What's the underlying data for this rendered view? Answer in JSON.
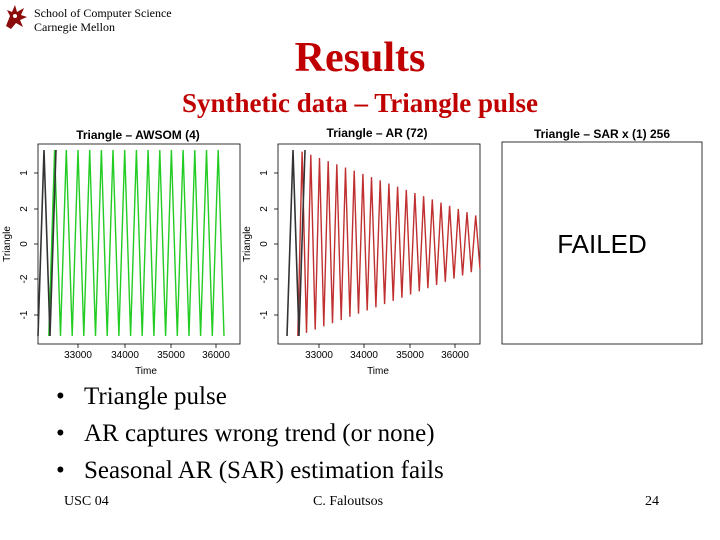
{
  "header": {
    "org_line1": "School of Computer Science",
    "org_line2": "Carnegie Mellon",
    "logo_icon": "griffin-logo-icon"
  },
  "slide": {
    "title": "Results",
    "subtitle": "Synthetic data – Triangle pulse",
    "title_color": "#c00000"
  },
  "chart_data": [
    {
      "type": "line",
      "title": "Triangle – AWSOM (4)",
      "xlabel": "Time",
      "ylabel": "Triangle",
      "x_ticks": [
        "33000",
        "34000",
        "35000",
        "36000"
      ],
      "y_ticks": [
        "-1",
        "-2",
        "0",
        "2",
        "1"
      ],
      "series": [
        {
          "color": "#333333",
          "cycles": 1.5,
          "amplitude": 1,
          "decay": 0
        },
        {
          "color": "#22cc22",
          "cycles": 15,
          "amplitude": 1,
          "decay": 0
        }
      ]
    },
    {
      "type": "line",
      "title": "Triangle – AR (72)",
      "xlabel": "Time",
      "ylabel": "Triangle",
      "x_ticks": [
        "33000",
        "34000",
        "35000",
        "36000"
      ],
      "y_ticks": [
        "-1",
        "-2",
        "0",
        "2",
        "1"
      ],
      "series": [
        {
          "color": "#333333",
          "cycles": 1.5,
          "amplitude": 1,
          "decay": 0
        },
        {
          "color": "#c03030",
          "cycles": 21,
          "amplitude": 1,
          "decay": 0.72
        }
      ]
    },
    {
      "type": "table",
      "title": "Triangle – SAR x (1) 256",
      "failed_label": "FAILED"
    }
  ],
  "bullets": [
    "Triangle pulse",
    "AR captures wrong trend (or none)",
    "Seasonal AR (SAR) estimation fails"
  ],
  "bullet_symbol": "•",
  "footer": {
    "left": "USC 04",
    "center": "C. Faloutsos",
    "right": "24"
  }
}
